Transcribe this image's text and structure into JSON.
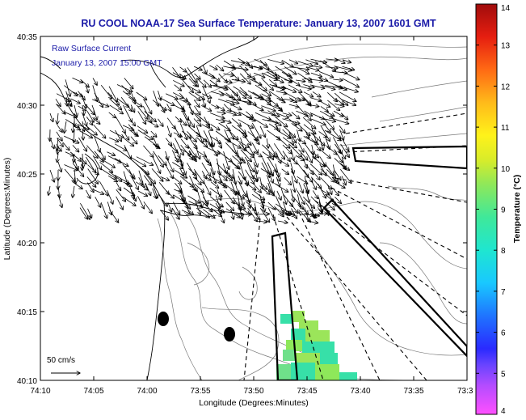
{
  "title": "RU COOL  NOAA-17  Sea Surface Temperature:  January 13, 2007 1601 GMT",
  "legend": {
    "line1": "Raw Surface Current",
    "line2": "January 13, 2007 15:00 GMT"
  },
  "scale_label": "50 cm/s",
  "axes": {
    "xlabel": "Longitude (Degrees:Minutes)",
    "ylabel": "Latitude (Degrees:Minutes)",
    "xticks": [
      "74:10",
      "74:05",
      "74:00",
      "73:55",
      "73:50",
      "73:45",
      "73:40",
      "73:35",
      "73:3"
    ],
    "yticks": [
      "40:35",
      "40:30",
      "40:25",
      "40:20",
      "40:15",
      "40:10"
    ]
  },
  "colorbar": {
    "label": "Temperature (°C)",
    "ticks": [
      "14",
      "13",
      "12",
      "11",
      "10",
      "9",
      "8",
      "7",
      "6",
      "5",
      "4"
    ],
    "min": 4,
    "max": 14
  },
  "colors": {
    "title": "#1a1aa8",
    "sst_green": "#9be55a",
    "sst_teal": "#37e0a8"
  }
}
